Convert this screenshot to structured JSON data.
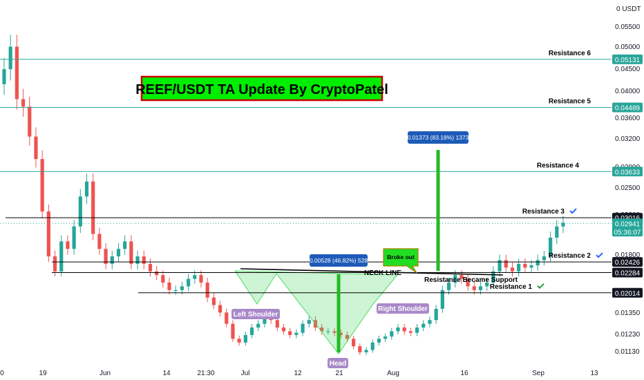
{
  "chart_data": {
    "type": "candlestick",
    "title": "REEF/USDT TA Update By CryptoPatel",
    "yaxis": {
      "unit_label": "0 USDT",
      "ticks": [
        "0.05500",
        "0.05000",
        "0.04500",
        "0.04000",
        "0.03600",
        "0.03200",
        "0.02900",
        "0.02500",
        "0.02200",
        "0.02000",
        "0.01800",
        "0.01650",
        "0.01500",
        "0.01350",
        "0.01230",
        "0.01130"
      ],
      "value_at_top": 0.0585,
      "value_at_bottom": 0.0108
    },
    "xaxis": {
      "ticks": [
        "0",
        "19",
        "Jun",
        "14",
        "21:30",
        "Jul",
        "12",
        "21",
        "Aug",
        "16",
        "Sep",
        "13"
      ]
    },
    "levels": [
      {
        "name": "Resistance 6",
        "value": 0.05131,
        "label": "0.05131",
        "color": "#2aa59a",
        "check": false
      },
      {
        "name": "Resistance 5",
        "value": 0.04489,
        "label": "0.04489",
        "color": "#2aa59a",
        "check": false
      },
      {
        "name": "Resistance 4",
        "value": 0.03633,
        "label": "0.03633",
        "color": "#2aa59a",
        "check": false
      },
      {
        "name": "Resistance 3",
        "value": 0.03016,
        "label": "0.03016",
        "color": "#000000",
        "check": true,
        "check_color": "#2962ff"
      },
      {
        "name": "Resistance 2",
        "value": 0.02426,
        "label": "0.02426",
        "color": "#000000",
        "check": true,
        "check_color": "#2962ff"
      },
      {
        "name": "",
        "value": 0.02284,
        "label": "0.02284",
        "color": "#000000",
        "check": false
      },
      {
        "name": "Resistance 1",
        "value": 0.02014,
        "label": "0.02014",
        "color": "#000000",
        "check": true,
        "check_color": "#26a042"
      }
    ],
    "current_price": {
      "value": 0.02941,
      "label": "0.02941",
      "countdown": "05:36:07"
    },
    "measures": [
      {
        "text": "0.00528 (46.82%) 528",
        "color": "#22bb22"
      },
      {
        "text": "0.01373 (83.18%) 1373",
        "color": "#22bb22"
      }
    ],
    "annotations": {
      "neck_line": "NECK LINE",
      "support_flip": "Resistance Became Support",
      "left_shoulder": "Left Shoulder",
      "head": "Head",
      "right_shoulder": "Right Shoulder",
      "broke_out": "Broke out"
    },
    "series": {
      "up_color": "#26a69a",
      "down_color": "#ef5350",
      "closes": [
        0.05,
        0.053,
        0.046,
        0.045,
        0.041,
        0.038,
        0.031,
        0.025,
        0.023,
        0.027,
        0.026,
        0.029,
        0.033,
        0.035,
        0.028,
        0.026,
        0.024,
        0.025,
        0.026,
        0.027,
        0.024,
        0.025,
        0.024,
        0.023,
        0.0225,
        0.0215,
        0.0205,
        0.0205,
        0.021,
        0.022,
        0.0225,
        0.0215,
        0.0195,
        0.0185,
        0.0175,
        0.016,
        0.014,
        0.0135,
        0.0145,
        0.0155,
        0.016,
        0.017,
        0.0165,
        0.0155,
        0.015,
        0.0145,
        0.0148,
        0.016,
        0.0165,
        0.0155,
        0.015,
        0.015,
        0.0148,
        0.0145,
        0.014,
        0.013,
        0.0122,
        0.0125,
        0.0135,
        0.014,
        0.0143,
        0.015,
        0.0155,
        0.015,
        0.0148,
        0.0155,
        0.016,
        0.0165,
        0.018,
        0.0205,
        0.0215,
        0.0225,
        0.022,
        0.021,
        0.0205,
        0.021,
        0.0215,
        0.023,
        0.0245,
        0.0235,
        0.023,
        0.024,
        0.0235,
        0.0238,
        0.0245,
        0.025,
        0.0275,
        0.029,
        0.0295
      ]
    }
  }
}
